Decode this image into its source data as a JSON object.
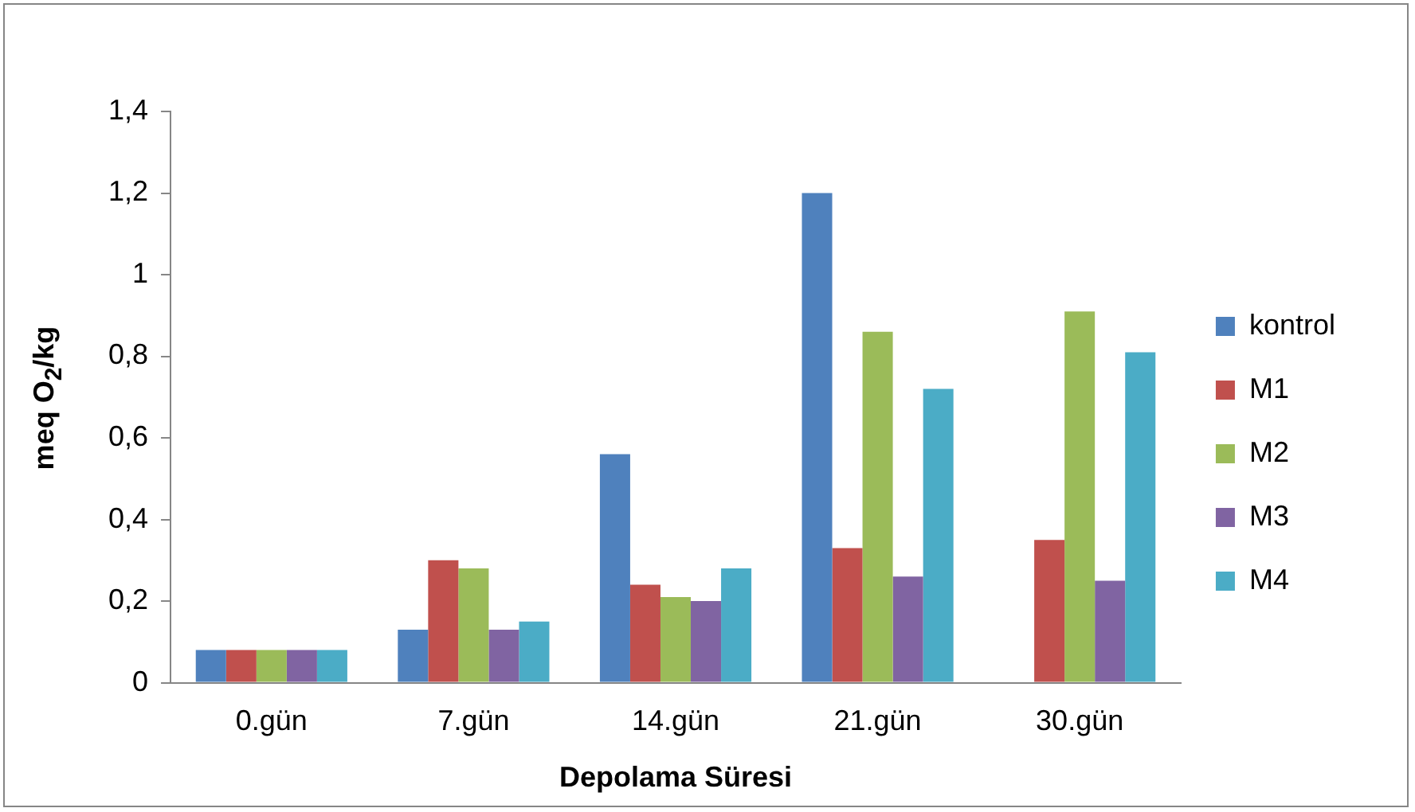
{
  "chart_data": {
    "type": "bar",
    "xlabel": "Depolama Süresi",
    "ylabel": "meq O$_{2}$/kg",
    "categories": [
      "0.gün",
      "7.gün",
      "14.gün",
      "21.gün",
      "30.gün"
    ],
    "series": [
      {
        "name": "kontrol",
        "color": "#4f81bd",
        "values": [
          0.08,
          0.13,
          0.56,
          1.2,
          null
        ]
      },
      {
        "name": "M1",
        "color": "#c0504d",
        "values": [
          0.08,
          0.3,
          0.24,
          0.33,
          0.35
        ]
      },
      {
        "name": "M2",
        "color": "#9bbb59",
        "values": [
          0.08,
          0.28,
          0.21,
          0.86,
          0.91
        ]
      },
      {
        "name": "M3",
        "color": "#8064a2",
        "values": [
          0.08,
          0.13,
          0.2,
          0.26,
          0.25
        ]
      },
      {
        "name": "M4",
        "color": "#4bacc6",
        "values": [
          0.08,
          0.15,
          0.28,
          0.72,
          0.81
        ]
      }
    ],
    "ylim": [
      0,
      1.4
    ],
    "yticks": [
      {
        "value": 0,
        "label": "0"
      },
      {
        "value": 0.2,
        "label": "0,2"
      },
      {
        "value": 0.4,
        "label": "0,4"
      },
      {
        "value": 0.6,
        "label": "0,6"
      },
      {
        "value": 0.8,
        "label": "0,8"
      },
      {
        "value": 1,
        "label": "1"
      },
      {
        "value": 1.2,
        "label": "1,2"
      },
      {
        "value": 1.4,
        "label": "1,4"
      }
    ],
    "grid": false,
    "legend": "right"
  }
}
